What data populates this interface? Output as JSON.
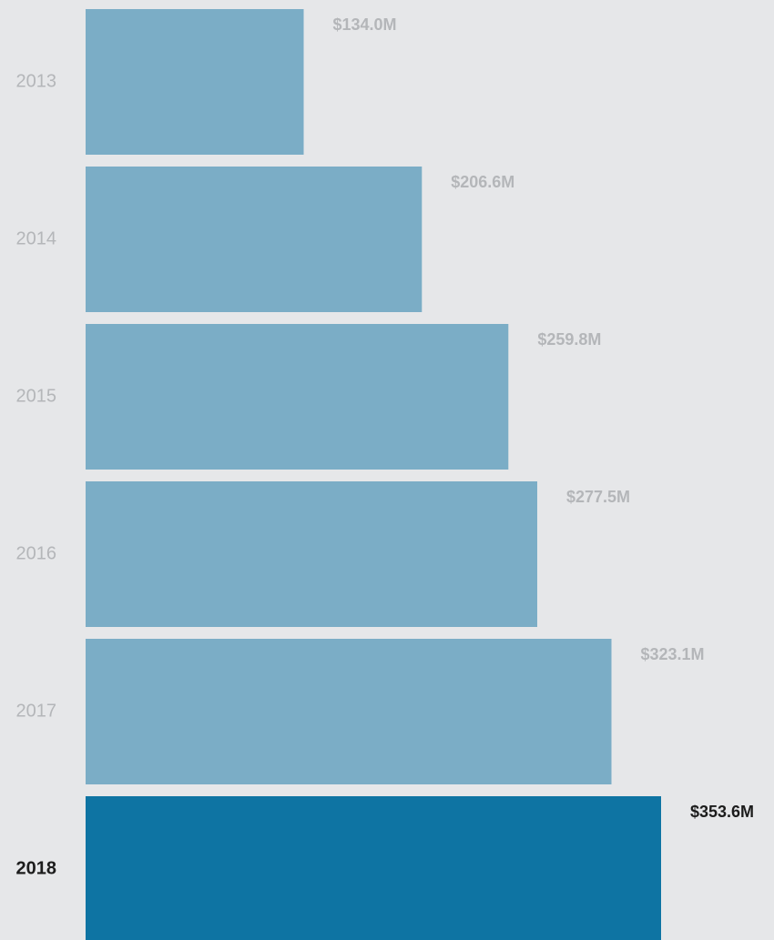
{
  "chart_data": {
    "type": "bar",
    "orientation": "horizontal",
    "categories": [
      "2013",
      "2014",
      "2015",
      "2016",
      "2017",
      "2018"
    ],
    "values": [
      134.0,
      206.6,
      259.8,
      277.5,
      323.1,
      353.6
    ],
    "value_labels": [
      "$134.0M",
      "$206.6M",
      "$259.8M",
      "$277.5M",
      "$323.1M",
      "$353.6M"
    ],
    "unit": "$M",
    "highlighted_category": "2018",
    "colors": {
      "bar": "#7badc6",
      "highlight_bar": "#0e74a3",
      "label": "#b4b6b9",
      "highlight_label": "#1c1c1c",
      "background": "#e6e7e9"
    },
    "xlim": [
      0,
      353.6
    ],
    "grid": false,
    "legend": "none"
  }
}
